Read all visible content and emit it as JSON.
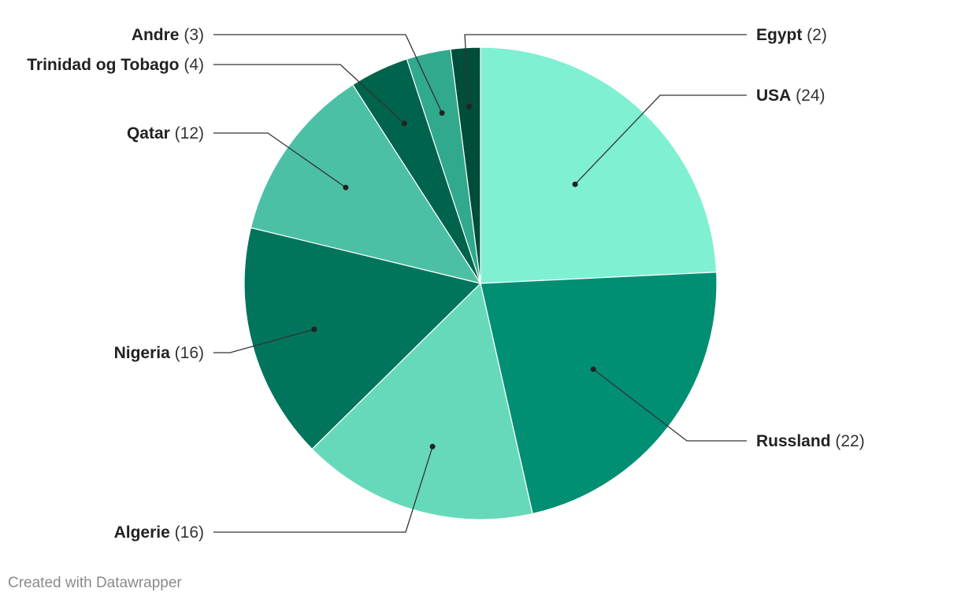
{
  "chart_data": {
    "type": "pie",
    "slices": [
      {
        "label": "USA",
        "value": 24,
        "color": "#7ff0d2"
      },
      {
        "label": "Russland",
        "value": 22,
        "color": "#008f73"
      },
      {
        "label": "Algerie",
        "value": 16,
        "color": "#66d9bb"
      },
      {
        "label": "Nigeria",
        "value": 16,
        "color": "#00755c"
      },
      {
        "label": "Qatar",
        "value": 12,
        "color": "#4cc0a5"
      },
      {
        "label": "Trinidad og Tobago",
        "value": 4,
        "color": "#00634b"
      },
      {
        "label": "Andre",
        "value": 3,
        "color": "#30a98d"
      },
      {
        "label": "Egypt",
        "value": 2,
        "color": "#004d39"
      }
    ],
    "title": "",
    "legend": "none"
  },
  "footer": {
    "credit": "Created with Datawrapper"
  }
}
